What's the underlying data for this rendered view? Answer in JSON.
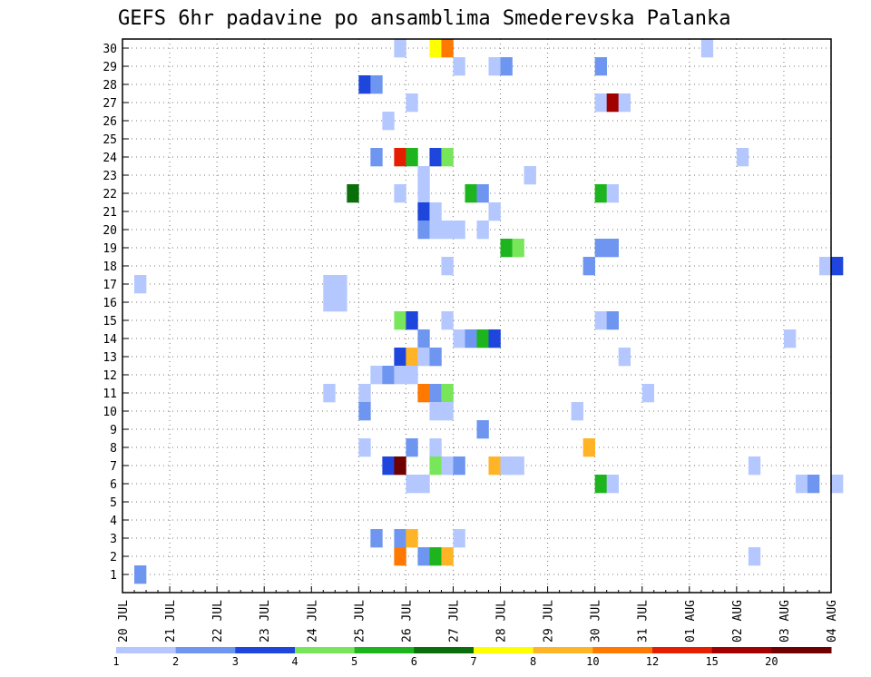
{
  "chart_data": {
    "type": "heatmap",
    "title": "GEFS 6hr padavine po ansamblima Smederevska Palanka",
    "y_ticks": [
      "1",
      "2",
      "3",
      "4",
      "5",
      "6",
      "7",
      "8",
      "9",
      "10",
      "11",
      "12",
      "13",
      "14",
      "15",
      "16",
      "17",
      "18",
      "19",
      "20",
      "21",
      "22",
      "23",
      "24",
      "25",
      "26",
      "27",
      "28",
      "29",
      "30"
    ],
    "x_ticks": [
      "20 JUL",
      "21 JUL",
      "22 JUL",
      "23 JUL",
      "24 JUL",
      "25 JUL",
      "26 JUL",
      "27 JUL",
      "28 JUL",
      "29 JUL",
      "30 JUL",
      "31 JUL",
      "01 AUG",
      "02 AUG",
      "03 AUG",
      "04 AUG"
    ],
    "x_range_days": [
      0,
      15
    ],
    "step_hours": 6,
    "grid": true,
    "legend": {
      "placement": "bottom",
      "labels": [
        "1",
        "2",
        "3",
        "4",
        "5",
        "6",
        "7",
        "8",
        "10",
        "12",
        "15",
        "20"
      ],
      "colors": [
        "#b4c8ff",
        "#6e96f0",
        "#1e46dc",
        "#78e65a",
        "#1eb41e",
        "#0a6e0a",
        "#ffff00",
        "#ffb428",
        "#ff7800",
        "#e61e00",
        "#a00000",
        "#6e0000"
      ]
    },
    "cells": [
      {
        "member": 30,
        "col": 23,
        "level": 1
      },
      {
        "member": 30,
        "col": 26,
        "level": 7
      },
      {
        "member": 30,
        "col": 27,
        "level": 9
      },
      {
        "member": 30,
        "col": 49,
        "level": 1
      },
      {
        "member": 29,
        "col": 28,
        "level": 1
      },
      {
        "member": 29,
        "col": 31,
        "level": 1
      },
      {
        "member": 29,
        "col": 32,
        "level": 2
      },
      {
        "member": 29,
        "col": 40,
        "level": 2
      },
      {
        "member": 28,
        "col": 20,
        "level": 3
      },
      {
        "member": 28,
        "col": 21,
        "level": 2
      },
      {
        "member": 27,
        "col": 24,
        "level": 1
      },
      {
        "member": 27,
        "col": 40,
        "level": 1
      },
      {
        "member": 27,
        "col": 41,
        "level": 11
      },
      {
        "member": 27,
        "col": 42,
        "level": 1
      },
      {
        "member": 26,
        "col": 22,
        "level": 1
      },
      {
        "member": 24,
        "col": 21,
        "level": 2
      },
      {
        "member": 24,
        "col": 23,
        "level": 10
      },
      {
        "member": 24,
        "col": 24,
        "level": 5
      },
      {
        "member": 24,
        "col": 26,
        "level": 3
      },
      {
        "member": 24,
        "col": 27,
        "level": 4
      },
      {
        "member": 24,
        "col": 52,
        "level": 1
      },
      {
        "member": 23,
        "col": 25,
        "level": 1
      },
      {
        "member": 23,
        "col": 34,
        "level": 1
      },
      {
        "member": 22,
        "col": 19,
        "level": 6
      },
      {
        "member": 22,
        "col": 23,
        "level": 1
      },
      {
        "member": 22,
        "col": 25,
        "level": 1
      },
      {
        "member": 22,
        "col": 29,
        "level": 5
      },
      {
        "member": 22,
        "col": 30,
        "level": 2
      },
      {
        "member": 22,
        "col": 40,
        "level": 5
      },
      {
        "member": 22,
        "col": 41,
        "level": 1
      },
      {
        "member": 21,
        "col": 25,
        "level": 3
      },
      {
        "member": 21,
        "col": 26,
        "level": 1
      },
      {
        "member": 21,
        "col": 31,
        "level": 1
      },
      {
        "member": 20,
        "col": 25,
        "level": 2
      },
      {
        "member": 20,
        "col": 26,
        "level": 1
      },
      {
        "member": 20,
        "col": 27,
        "level": 1
      },
      {
        "member": 20,
        "col": 28,
        "level": 1
      },
      {
        "member": 20,
        "col": 30,
        "level": 1
      },
      {
        "member": 19,
        "col": 32,
        "level": 5
      },
      {
        "member": 19,
        "col": 33,
        "level": 4
      },
      {
        "member": 19,
        "col": 40,
        "level": 2
      },
      {
        "member": 19,
        "col": 41,
        "level": 2
      },
      {
        "member": 18,
        "col": 27,
        "level": 1
      },
      {
        "member": 18,
        "col": 39,
        "level": 2
      },
      {
        "member": 18,
        "col": 59,
        "level": 1
      },
      {
        "member": 18,
        "col": 60,
        "level": 3
      },
      {
        "member": 17,
        "col": 1,
        "level": 1
      },
      {
        "member": 17,
        "col": 17,
        "level": 1
      },
      {
        "member": 17,
        "col": 18,
        "level": 1
      },
      {
        "member": 16,
        "col": 17,
        "level": 1
      },
      {
        "member": 16,
        "col": 18,
        "level": 1
      },
      {
        "member": 15,
        "col": 23,
        "level": 4
      },
      {
        "member": 15,
        "col": 24,
        "level": 3
      },
      {
        "member": 15,
        "col": 27,
        "level": 1
      },
      {
        "member": 15,
        "col": 40,
        "level": 1
      },
      {
        "member": 15,
        "col": 41,
        "level": 2
      },
      {
        "member": 14,
        "col": 25,
        "level": 2
      },
      {
        "member": 14,
        "col": 28,
        "level": 1
      },
      {
        "member": 14,
        "col": 29,
        "level": 2
      },
      {
        "member": 14,
        "col": 30,
        "level": 5
      },
      {
        "member": 14,
        "col": 31,
        "level": 3
      },
      {
        "member": 14,
        "col": 56,
        "level": 1
      },
      {
        "member": 13,
        "col": 23,
        "level": 3
      },
      {
        "member": 13,
        "col": 24,
        "level": 8
      },
      {
        "member": 13,
        "col": 25,
        "level": 1
      },
      {
        "member": 13,
        "col": 26,
        "level": 2
      },
      {
        "member": 13,
        "col": 42,
        "level": 1
      },
      {
        "member": 12,
        "col": 21,
        "level": 1
      },
      {
        "member": 12,
        "col": 22,
        "level": 2
      },
      {
        "member": 12,
        "col": 23,
        "level": 1
      },
      {
        "member": 12,
        "col": 24,
        "level": 1
      },
      {
        "member": 11,
        "col": 17,
        "level": 1
      },
      {
        "member": 11,
        "col": 20,
        "level": 1
      },
      {
        "member": 11,
        "col": 25,
        "level": 9
      },
      {
        "member": 11,
        "col": 26,
        "level": 2
      },
      {
        "member": 11,
        "col": 27,
        "level": 4
      },
      {
        "member": 11,
        "col": 44,
        "level": 1
      },
      {
        "member": 10,
        "col": 20,
        "level": 2
      },
      {
        "member": 10,
        "col": 26,
        "level": 1
      },
      {
        "member": 10,
        "col": 27,
        "level": 1
      },
      {
        "member": 10,
        "col": 38,
        "level": 1
      },
      {
        "member": 9,
        "col": 30,
        "level": 2
      },
      {
        "member": 8,
        "col": 20,
        "level": 1
      },
      {
        "member": 8,
        "col": 24,
        "level": 2
      },
      {
        "member": 8,
        "col": 26,
        "level": 1
      },
      {
        "member": 8,
        "col": 39,
        "level": 8
      },
      {
        "member": 7,
        "col": 22,
        "level": 3
      },
      {
        "member": 7,
        "col": 23,
        "level": 12
      },
      {
        "member": 7,
        "col": 26,
        "level": 4
      },
      {
        "member": 7,
        "col": 27,
        "level": 1
      },
      {
        "member": 7,
        "col": 28,
        "level": 2
      },
      {
        "member": 7,
        "col": 31,
        "level": 8
      },
      {
        "member": 7,
        "col": 32,
        "level": 1
      },
      {
        "member": 7,
        "col": 33,
        "level": 1
      },
      {
        "member": 7,
        "col": 53,
        "level": 1
      },
      {
        "member": 6,
        "col": 24,
        "level": 1
      },
      {
        "member": 6,
        "col": 25,
        "level": 1
      },
      {
        "member": 6,
        "col": 40,
        "level": 5
      },
      {
        "member": 6,
        "col": 41,
        "level": 1
      },
      {
        "member": 6,
        "col": 57,
        "level": 1
      },
      {
        "member": 6,
        "col": 58,
        "level": 2
      },
      {
        "member": 6,
        "col": 60,
        "level": 1
      },
      {
        "member": 3,
        "col": 21,
        "level": 2
      },
      {
        "member": 3,
        "col": 23,
        "level": 2
      },
      {
        "member": 3,
        "col": 24,
        "level": 8
      },
      {
        "member": 3,
        "col": 28,
        "level": 1
      },
      {
        "member": 2,
        "col": 23,
        "level": 9
      },
      {
        "member": 2,
        "col": 25,
        "level": 2
      },
      {
        "member": 2,
        "col": 26,
        "level": 5
      },
      {
        "member": 2,
        "col": 27,
        "level": 8
      },
      {
        "member": 2,
        "col": 53,
        "level": 1
      },
      {
        "member": 1,
        "col": 1,
        "level": 2
      }
    ]
  }
}
